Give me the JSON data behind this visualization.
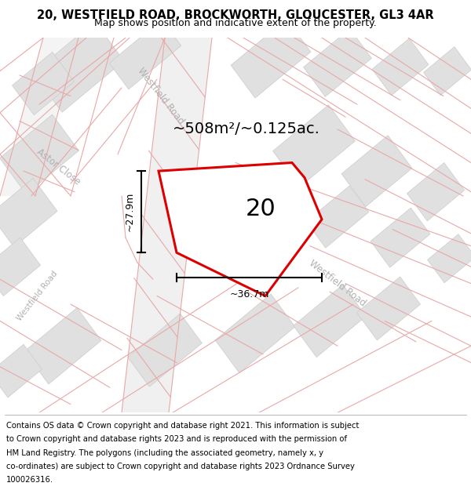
{
  "title_line1": "20, WESTFIELD ROAD, BROCKWORTH, GLOUCESTER, GL3 4AR",
  "title_line2": "Map shows position and indicative extent of the property.",
  "footer_lines": [
    "Contains OS data © Crown copyright and database right 2021. This information is subject",
    "to Crown copyright and database rights 2023 and is reproduced with the permission of",
    "HM Land Registry. The polygons (including the associated geometry, namely x, y",
    "co-ordinates) are subject to Crown copyright and database rights 2023 Ordnance Survey",
    "100026316."
  ],
  "map_bg": "#ffffff",
  "pink": "#e8a8a8",
  "building_fill": "#e0e0e0",
  "building_stroke": "#cccccc",
  "red_color": "#dd0000",
  "road_label_color": "#b0b0b0",
  "area_label": "~508m²/~0.125ac.",
  "property_label": "20",
  "dim_width": "~36.7m",
  "dim_height": "~27.9m",
  "title_fontsize": 10.5,
  "subtitle_fontsize": 9,
  "footer_fontsize": 7.2,
  "area_fontsize": 14,
  "prop_label_fontsize": 22,
  "dim_fontsize": 9,
  "road_label_fontsize": 8.5
}
